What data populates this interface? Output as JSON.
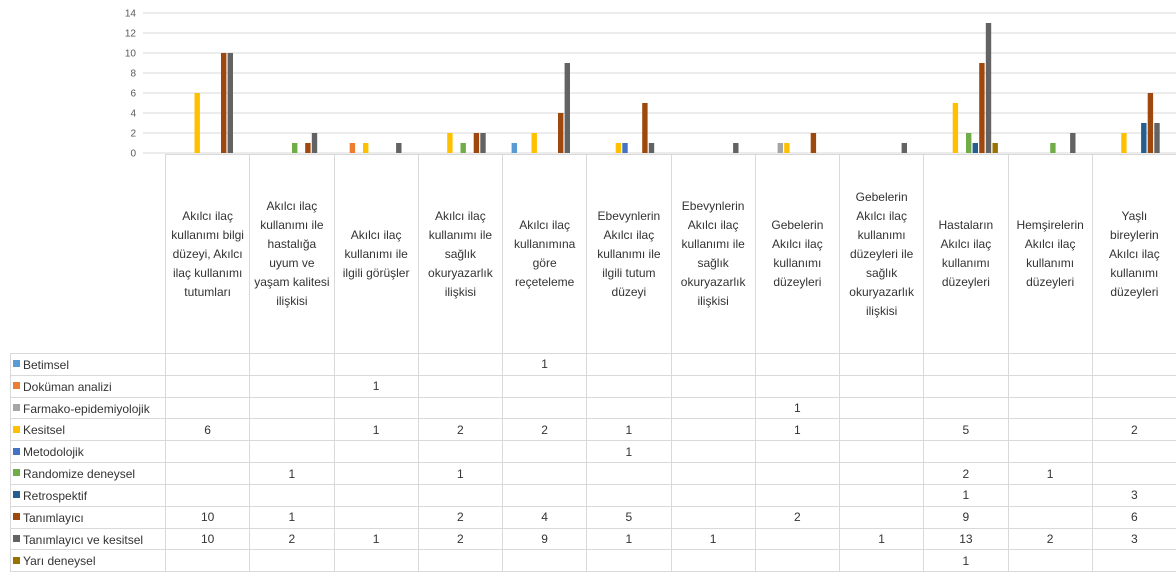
{
  "chart_data": {
    "type": "bar",
    "ylim": [
      0,
      14
    ],
    "yticks": [
      0,
      2,
      4,
      6,
      8,
      10,
      12,
      14
    ],
    "grid": true,
    "legend": "data-table-left",
    "categories": [
      "Akılcı ilaç kullanımı bilgi düzeyi, Akılcı ilaç kullanımı tutumları",
      "Akılcı ilaç kullanımı ile hastalığa uyum ve yaşam kalitesi ilişkisi",
      "Akılcı ilaç kullanımı ile ilgili görüşler",
      "Akılcı ilaç kullanımı ile sağlık okuryazarlık ilişkisi",
      "Akılcı ilaç kullanımına göre reçeteleme",
      "Ebevynlerin Akılcı ilaç kullanımı ile ilgili tutum düzeyi",
      "Ebevynlerin Akılcı ilaç kullanımı ile sağlık okuryazarlık ilişkisi",
      "Gebelerin Akılcı ilaç kullanımı düzeyleri",
      "Gebelerin Akılcı ilaç kullanımı düzeyleri ile sağlık okuryazarlık ilişkisi",
      "Hastaların Akılcı ilaç kullanımı düzeyleri",
      "Hemşirelerin Akılcı ilaç kullanımı düzeyleri",
      "Yaşlı bireylerin Akılcı ilaç kullanımı düzeyleri"
    ],
    "series": [
      {
        "name": "Betimsel",
        "color": "#5b9bd5",
        "values": [
          null,
          null,
          null,
          null,
          1,
          null,
          null,
          null,
          null,
          null,
          null,
          null
        ]
      },
      {
        "name": "Doküman analizi",
        "color": "#ed7d31",
        "values": [
          null,
          null,
          1,
          null,
          null,
          null,
          null,
          null,
          null,
          null,
          null,
          null
        ]
      },
      {
        "name": "Farmako-epidemiyolojik",
        "color": "#a5a5a5",
        "values": [
          null,
          null,
          null,
          null,
          null,
          null,
          null,
          1,
          null,
          null,
          null,
          null
        ]
      },
      {
        "name": "Kesitsel",
        "color": "#ffc000",
        "values": [
          6,
          null,
          1,
          2,
          2,
          1,
          null,
          1,
          null,
          5,
          null,
          2
        ]
      },
      {
        "name": "Metodolojik",
        "color": "#4472c4",
        "values": [
          null,
          null,
          null,
          null,
          null,
          1,
          null,
          null,
          null,
          null,
          null,
          null
        ]
      },
      {
        "name": "Randomize deneysel",
        "color": "#70ad47",
        "values": [
          null,
          1,
          null,
          1,
          null,
          null,
          null,
          null,
          null,
          2,
          1,
          null
        ]
      },
      {
        "name": "Retrospektif",
        "color": "#255e91",
        "values": [
          null,
          null,
          null,
          null,
          null,
          null,
          null,
          null,
          null,
          1,
          null,
          3
        ]
      },
      {
        "name": "Tanımlayıcı",
        "color": "#9e480e",
        "values": [
          10,
          1,
          null,
          2,
          4,
          5,
          null,
          2,
          null,
          9,
          null,
          6
        ]
      },
      {
        "name": "Tanımlayıcı ve kesitsel",
        "color": "#636363",
        "values": [
          10,
          2,
          1,
          2,
          9,
          1,
          1,
          null,
          1,
          13,
          2,
          3
        ]
      },
      {
        "name": "Yarı deneysel",
        "color": "#997300",
        "values": [
          null,
          null,
          null,
          null,
          null,
          null,
          null,
          null,
          null,
          1,
          null,
          null
        ]
      }
    ]
  }
}
